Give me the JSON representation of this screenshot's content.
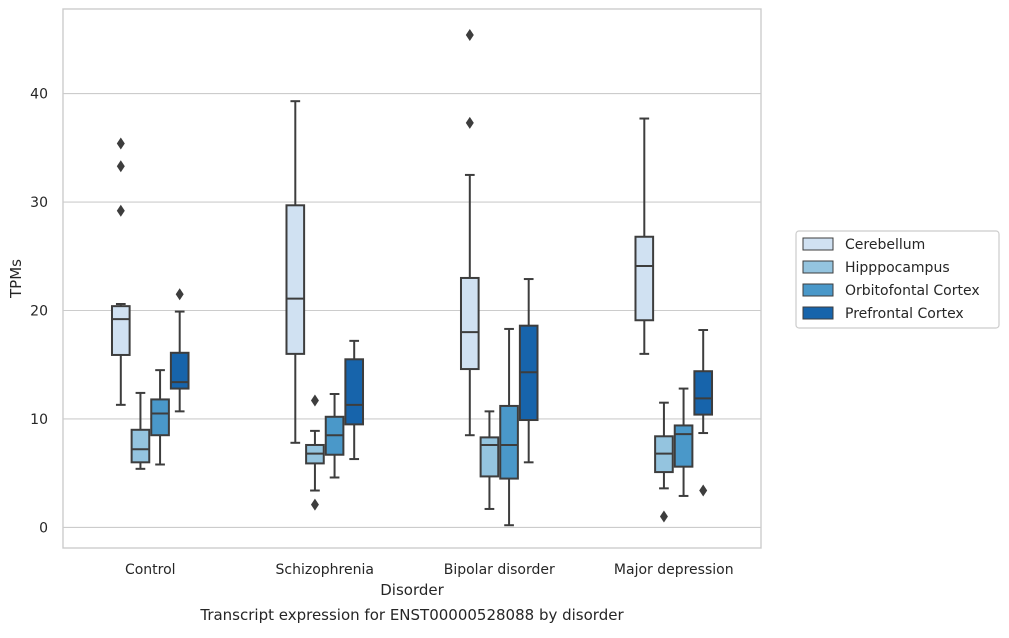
{
  "caption": "Transcript expression for ENST00000528088 by disorder",
  "chart_data": {
    "type": "box",
    "xlabel": "Disorder",
    "ylabel": "TPMs",
    "ylim": [
      -1.9,
      47.8
    ],
    "yticks": [
      0,
      10,
      20,
      30,
      40
    ],
    "grid": "horizontal",
    "legend_position": "right",
    "categories": [
      "Control",
      "Schizophrenia",
      "Bipolar disorder",
      "Major depression"
    ],
    "series": [
      {
        "name": "Cerebellum",
        "color": "#d0e1f2",
        "boxes": [
          {
            "whislo": 11.3,
            "q1": 15.9,
            "med": 19.2,
            "q3": 20.4,
            "whishi": 20.6,
            "fliers": [
              29.2,
              33.3,
              35.4
            ]
          },
          {
            "whislo": 7.8,
            "q1": 16.0,
            "med": 21.1,
            "q3": 29.7,
            "whishi": 39.3,
            "fliers": []
          },
          {
            "whislo": 8.5,
            "q1": 14.6,
            "med": 18.0,
            "q3": 23.0,
            "whishi": 32.5,
            "fliers": [
              37.3,
              45.4
            ]
          },
          {
            "whislo": 16.0,
            "q1": 19.1,
            "med": 24.1,
            "q3": 26.8,
            "whishi": 37.7,
            "fliers": []
          }
        ]
      },
      {
        "name": "Hipppocampus",
        "color": "#94c4df",
        "boxes": [
          {
            "whislo": 5.4,
            "q1": 6.0,
            "med": 7.2,
            "q3": 9.0,
            "whishi": 12.4,
            "fliers": []
          },
          {
            "whislo": 3.4,
            "q1": 5.9,
            "med": 6.8,
            "q3": 7.6,
            "whishi": 8.9,
            "fliers": [
              2.1,
              11.7
            ]
          },
          {
            "whislo": 1.7,
            "q1": 4.7,
            "med": 7.6,
            "q3": 8.3,
            "whishi": 10.7,
            "fliers": []
          },
          {
            "whislo": 3.6,
            "q1": 5.1,
            "med": 6.8,
            "q3": 8.4,
            "whishi": 11.5,
            "fliers": [
              1.0
            ]
          }
        ]
      },
      {
        "name": "Orbitofontal Cortex",
        "color": "#4a98c9",
        "boxes": [
          {
            "whislo": 5.8,
            "q1": 8.5,
            "med": 10.5,
            "q3": 11.8,
            "whishi": 14.5,
            "fliers": []
          },
          {
            "whislo": 4.6,
            "q1": 6.7,
            "med": 8.5,
            "q3": 10.2,
            "whishi": 12.3,
            "fliers": []
          },
          {
            "whislo": 0.2,
            "q1": 4.5,
            "med": 7.6,
            "q3": 11.2,
            "whishi": 18.3,
            "fliers": []
          },
          {
            "whislo": 2.9,
            "q1": 5.6,
            "med": 8.6,
            "q3": 9.4,
            "whishi": 12.8,
            "fliers": []
          }
        ]
      },
      {
        "name": "Prefrontal Cortex",
        "color": "#1764ab",
        "boxes": [
          {
            "whislo": 10.7,
            "q1": 12.8,
            "med": 13.4,
            "q3": 16.1,
            "whishi": 19.9,
            "fliers": [
              21.5
            ]
          },
          {
            "whislo": 6.3,
            "q1": 9.5,
            "med": 11.3,
            "q3": 15.5,
            "whishi": 17.2,
            "fliers": []
          },
          {
            "whislo": 6.0,
            "q1": 9.9,
            "med": 14.3,
            "q3": 18.6,
            "whishi": 22.9,
            "fliers": []
          },
          {
            "whislo": 8.7,
            "q1": 10.4,
            "med": 11.9,
            "q3": 14.4,
            "whishi": 18.2,
            "fliers": [
              3.4
            ]
          }
        ]
      }
    ]
  }
}
